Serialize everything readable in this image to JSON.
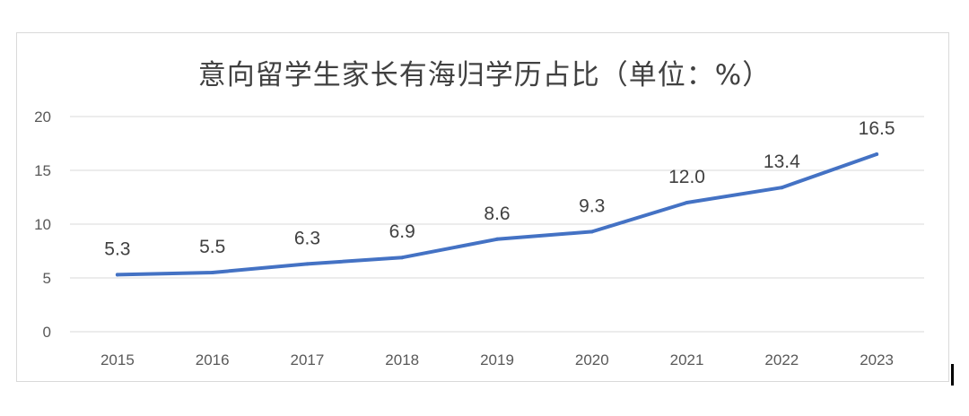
{
  "chart_data": {
    "type": "line",
    "title": "意向留学生家长有海归学历占比（单位：%）",
    "xlabel": "",
    "ylabel": "",
    "categories": [
      "2015",
      "2016",
      "2017",
      "2018",
      "2019",
      "2020",
      "2021",
      "2022",
      "2023"
    ],
    "series": [
      {
        "values": [
          5.3,
          5.5,
          6.3,
          6.9,
          8.6,
          9.3,
          12.0,
          13.4,
          16.5
        ]
      }
    ],
    "data_labels": [
      "5.3",
      "5.5",
      "6.3",
      "6.9",
      "8.6",
      "9.3",
      "12.0",
      "13.4",
      "16.5"
    ],
    "yticks": [
      "0",
      "5",
      "10",
      "15",
      "20"
    ],
    "ylim": [
      0,
      20
    ],
    "grid": true,
    "legend": "none",
    "colors": {
      "line": "#4472c4",
      "grid": "#d9d9d9",
      "axis_text": "#595959",
      "label_text": "#404040"
    }
  }
}
